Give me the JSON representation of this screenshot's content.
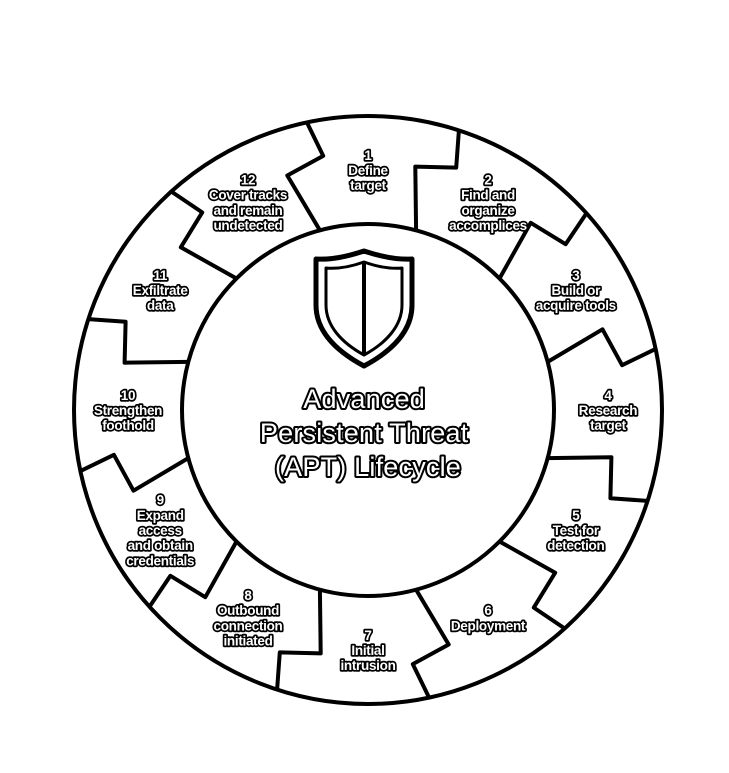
{
  "title_lines": [
    "Advanced",
    "Persistent Threat",
    "(APT) Lifecycle"
  ],
  "icon": "shield-icon",
  "colors": {
    "ink": "#000000",
    "paper": "#ffffff"
  },
  "steps": [
    {
      "num": "1",
      "lines": [
        "Define",
        "target"
      ]
    },
    {
      "num": "2",
      "lines": [
        "Find and",
        "organize",
        "accomplices"
      ]
    },
    {
      "num": "3",
      "lines": [
        "Build or",
        "acquire tools"
      ]
    },
    {
      "num": "4",
      "lines": [
        "Research",
        "target"
      ]
    },
    {
      "num": "5",
      "lines": [
        "Test for",
        "detection"
      ]
    },
    {
      "num": "6",
      "lines": [
        "Deployment"
      ]
    },
    {
      "num": "7",
      "lines": [
        "Initial",
        "intrusion"
      ]
    },
    {
      "num": "8",
      "lines": [
        "Outbound",
        "connection",
        "initiated"
      ]
    },
    {
      "num": "9",
      "lines": [
        "Expand",
        "access",
        "and obtain",
        "credentials"
      ]
    },
    {
      "num": "10",
      "lines": [
        "Strengthen",
        "foothold"
      ]
    },
    {
      "num": "11",
      "lines": [
        "Exfiltrate",
        "data"
      ]
    },
    {
      "num": "12",
      "lines": [
        "Cover tracks",
        "and remain",
        "undetected"
      ]
    }
  ]
}
